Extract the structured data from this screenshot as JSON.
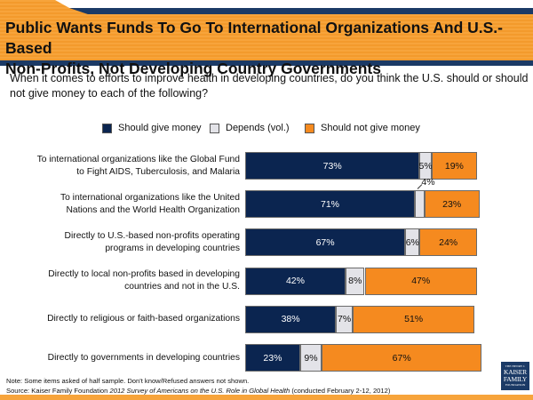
{
  "header": {
    "title_line1": "Public Wants Funds To Go To International Organizations And U.S.-Based",
    "title_line2": "Non-Profits, Not Developing Country Governments"
  },
  "question": "When it comes to efforts to improve health in developing countries, do you think the U.S. should or should not give money to each of the following?",
  "colors": {
    "should_give": "#0b2550",
    "depends": "#e3e3e8",
    "should_not": "#f58a1f",
    "brand_orange": "#f7a43b",
    "brand_navy": "#1b3a66"
  },
  "chart_data": {
    "type": "bar",
    "orientation": "horizontal-stacked",
    "title": "Public Wants Funds To Go To International Organizations And U.S.-Based Non-Profits, Not Developing Country Governments",
    "legend_position": "top",
    "series": [
      {
        "name": "Should give money",
        "values": [
          73,
          71,
          67,
          42,
          38,
          23
        ]
      },
      {
        "name": "Depends (vol.)",
        "values": [
          5,
          4,
          6,
          8,
          7,
          9
        ]
      },
      {
        "name": "Should not give money",
        "values": [
          19,
          23,
          24,
          47,
          51,
          67
        ]
      }
    ],
    "categories": [
      "To international organizations like the Global Fund to Fight AIDS, Tuberculosis, and Malaria",
      "To international organizations like the United Nations and the World Health Organization",
      "Directly to U.S.-based non-profits operating programs in developing countries",
      "Directly to local non-profits based in developing countries and not in the U.S.",
      "Directly to religious or faith-based organizations",
      "Directly to governments in developing countries"
    ],
    "category_lines": [
      [
        "To international organizations like the Global Fund",
        "to Fight AIDS, Tuberculosis, and Malaria"
      ],
      [
        "To international organizations like the United",
        "Nations and the World Health Organization"
      ],
      [
        "Directly to U.S.-based non-profits operating",
        "programs in developing countries"
      ],
      [
        "Directly to local non-profits based in developing",
        "countries and not in the U.S."
      ],
      [
        "Directly to religious or faith-based organizations"
      ],
      [
        "Directly to governments in developing countries"
      ]
    ],
    "value_suffix": "%",
    "xlim": [
      0,
      100
    ]
  },
  "footer": {
    "note": "Note: Some items asked of half sample. Don't know/Refused answers not shown.",
    "source_prefix": "Source: Kaiser Family Foundation ",
    "source_title": "2012 Survey of Americans on the U.S. Role in Global Health",
    "source_suffix": " (conducted February 2-12, 2012)"
  },
  "logo": {
    "line1": "THE HENRY J.",
    "line2": "KAISER",
    "line3": "FAMILY",
    "line4": "FOUNDATION"
  }
}
